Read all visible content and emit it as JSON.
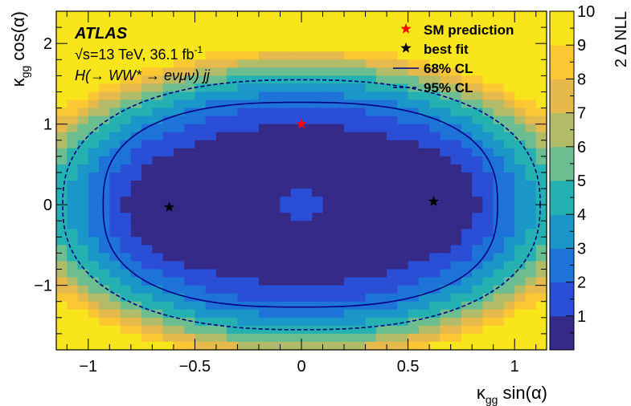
{
  "chart_data": {
    "type": "heatmap",
    "title": "",
    "experiment": "ATLAS",
    "energy_lumi": "√s=13 TeV, 36.1 fb",
    "energy_lumi_sup": "-1",
    "process": "H(→ WW* → eνμν) jj",
    "xlabel": "κgg sin(α)",
    "ylabel": "κgg cos(α)",
    "zlabel": "2 Δ NLL",
    "xlim": [
      -1.15,
      1.15
    ],
    "ylim": [
      -1.8,
      2.4
    ],
    "zlim": [
      0,
      10
    ],
    "x_ticks": [
      {
        "v": -1,
        "label": "−1"
      },
      {
        "v": -0.5,
        "label": "−0.5"
      },
      {
        "v": 0,
        "label": "0"
      },
      {
        "v": 0.5,
        "label": "0.5"
      },
      {
        "v": 1,
        "label": "1"
      }
    ],
    "y_ticks": [
      {
        "v": -1,
        "label": "−1"
      },
      {
        "v": 0,
        "label": "0"
      },
      {
        "v": 1,
        "label": "1"
      },
      {
        "v": 2,
        "label": "2"
      }
    ],
    "z_ticks": [
      {
        "v": 1,
        "label": "1"
      },
      {
        "v": 2,
        "label": "2"
      },
      {
        "v": 3,
        "label": "3"
      },
      {
        "v": 4,
        "label": "4"
      },
      {
        "v": 5,
        "label": "5"
      },
      {
        "v": 6,
        "label": "6"
      },
      {
        "v": 7,
        "label": "7"
      },
      {
        "v": 8,
        "label": "8"
      },
      {
        "v": 9,
        "label": "9"
      },
      {
        "v": 10,
        "label": "10"
      }
    ],
    "legend": {
      "position": "top-right",
      "entries": [
        {
          "label": "SM prediction",
          "marker": "star",
          "color": "#ff0000"
        },
        {
          "label": "best fit",
          "marker": "star",
          "color": "#000000"
        },
        {
          "label": "68% CL",
          "line": "solid",
          "color": "#000080"
        },
        {
          "label": "95% CL",
          "line": "dashed",
          "color": "#000080"
        }
      ]
    },
    "points": {
      "sm_prediction": [
        {
          "x": 0.0,
          "y": 1.0
        }
      ],
      "best_fit": [
        {
          "x": -0.62,
          "y": -0.03
        },
        {
          "x": 0.62,
          "y": 0.04
        }
      ]
    },
    "contours": {
      "cl68": {
        "center_x": 0.0,
        "center_y": 0.0,
        "x_extent": [
          -0.93,
          0.92
        ],
        "y_extent": [
          -1.27,
          1.27
        ]
      },
      "cl95": {
        "center_x": 0.0,
        "center_y": 0.0,
        "x_extent": [
          -1.12,
          1.12
        ],
        "y_extent": [
          -1.55,
          1.55
        ]
      }
    },
    "grid": false,
    "palette": [
      "#352a87",
      "#2a4fd6",
      "#1e73d8",
      "#1b96c8",
      "#25b0b1",
      "#6cbd90",
      "#b2bc68",
      "#e6b94c",
      "#fbc833",
      "#f9e51b"
    ]
  }
}
